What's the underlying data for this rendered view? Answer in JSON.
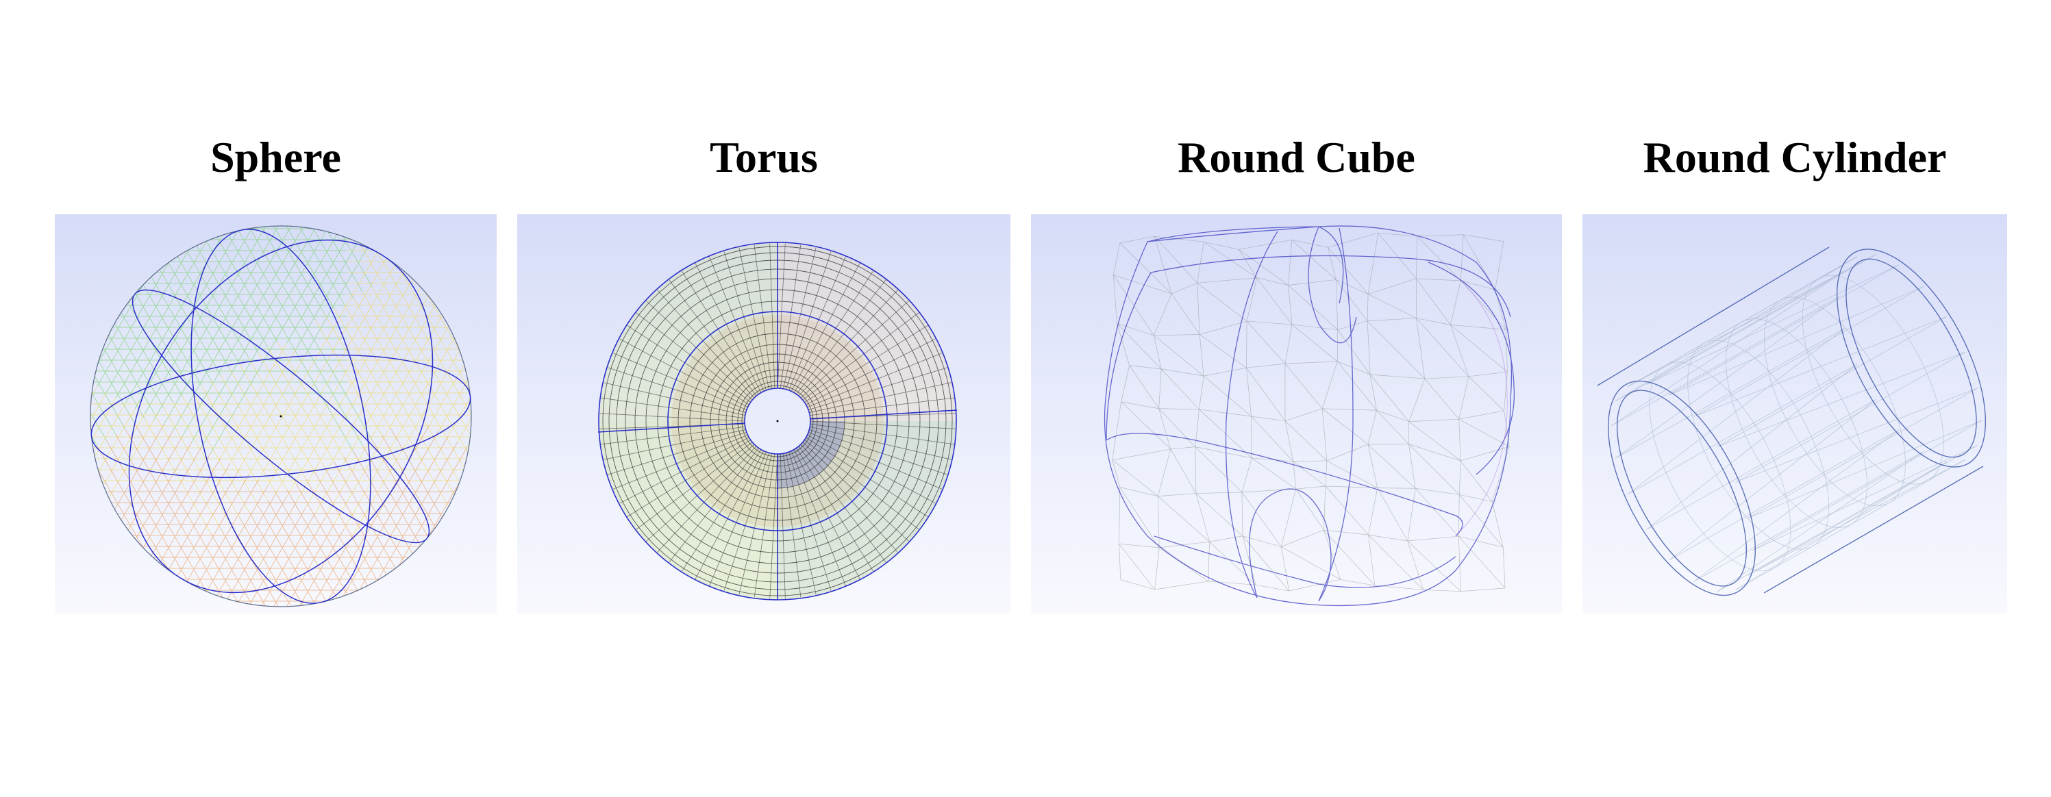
{
  "panels": [
    {
      "title": "Sphere",
      "shape": "sphere"
    },
    {
      "title": "Torus",
      "shape": "torus"
    },
    {
      "title": "Round Cube",
      "shape": "round-cube"
    },
    {
      "title": "Round Cylinder",
      "shape": "round-cylinder"
    }
  ],
  "colors": {
    "background_top": "#d6dcf8",
    "background_bottom": "#f8f9fe",
    "wire_blue": "#2a2fc8",
    "wire_green": "#6fcf5a",
    "wire_yellow": "#f0d84a",
    "wire_orange": "#e58a3a",
    "wire_dark": "#2a2a2a",
    "wire_purple": "#8a6ae0",
    "wire_gray": "#8a9090"
  }
}
